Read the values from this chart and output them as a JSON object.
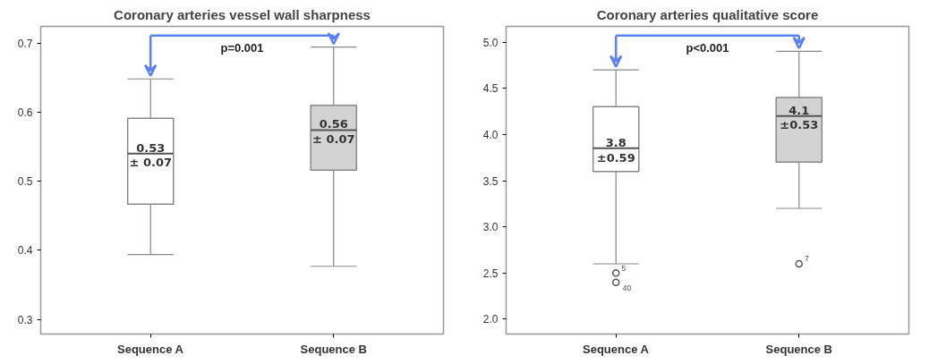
{
  "chart_data": [
    {
      "type": "box",
      "title": "Coronary arteries vessel wall sharpness",
      "categories": [
        "Sequence A",
        "Sequence B"
      ],
      "colors": [
        "#ffffff",
        "#d3d3d3"
      ],
      "boxes": [
        {
          "low": 0.394,
          "q1": 0.467,
          "median": 0.54,
          "q3": 0.591,
          "high": 0.648
        },
        {
          "low": 0.377,
          "q1": 0.516,
          "median": 0.574,
          "q3": 0.61,
          "high": 0.694
        }
      ],
      "ylim": [
        0.279,
        0.724
      ],
      "yticks": [
        0.3,
        0.4,
        0.5,
        0.6,
        0.7
      ],
      "grid": false,
      "annotations": [
        "0.53\n± 0.07",
        "0.56\n± 0.07",
        "p=0.001"
      ]
    },
    {
      "type": "box",
      "title": "Coronary arteries qualitative score",
      "categories": [
        "Sequence A",
        "Sequence B"
      ],
      "colors": [
        "#ffffff",
        "#d3d3d3"
      ],
      "boxes": [
        {
          "low": 2.6,
          "q1": 3.6,
          "median": 3.85,
          "q3": 4.3,
          "high": 4.7,
          "outliers": [
            2.5,
            2.4
          ]
        },
        {
          "low": 3.2,
          "q1": 3.7,
          "median": 4.2,
          "q3": 4.4,
          "high": 4.9,
          "outliers": [
            2.6
          ]
        }
      ],
      "ylim": [
        1.84,
        5.17
      ],
      "yticks": [
        {
          "value": 2,
          "label": "2.0"
        },
        2.5,
        {
          "value": 3,
          "label": "3.0"
        },
        3.5,
        {
          "value": 4,
          "label": "4.0"
        },
        4.5,
        {
          "value": 5,
          "label": "5.0"
        }
      ],
      "grid": false,
      "annotations": [
        "3.8\n±0.59",
        "4.1\n±0.53",
        "5",
        "40",
        "7",
        "p<0.001"
      ]
    }
  ]
}
